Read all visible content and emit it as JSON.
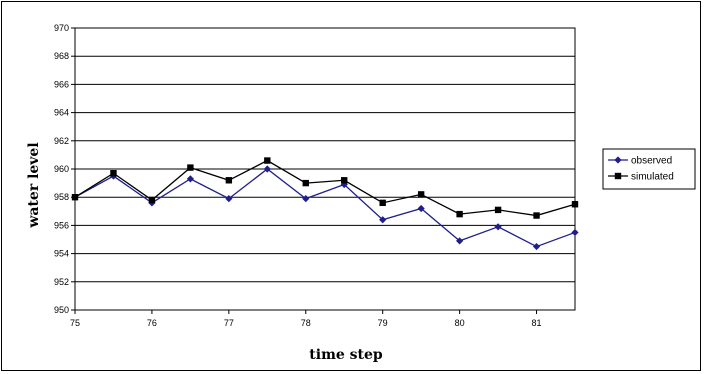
{
  "chart_data": {
    "type": "line",
    "xlabel": "time step",
    "ylabel": "water level",
    "x": [
      75,
      75.5,
      76,
      76.5,
      77,
      77.5,
      78,
      78.5,
      79,
      79.5,
      80,
      80.5,
      81,
      81.5
    ],
    "xlim": [
      75,
      81.5
    ],
    "ylim": [
      950,
      970
    ],
    "x_ticks": [
      "75",
      "76",
      "77",
      "78",
      "79",
      "80",
      "81"
    ],
    "y_ticks": [
      "950",
      "952",
      "954",
      "956",
      "958",
      "960",
      "962",
      "964",
      "966",
      "968",
      "970"
    ],
    "grid": "horizontal",
    "legend_position": "right",
    "series": [
      {
        "name": "observed",
        "color": "#1f1f8c",
        "marker": "diamond",
        "values": [
          958.0,
          959.5,
          957.6,
          959.3,
          957.9,
          960.0,
          957.9,
          958.9,
          956.4,
          957.2,
          954.9,
          955.9,
          954.5,
          955.5
        ]
      },
      {
        "name": "simulated",
        "color": "#000000",
        "marker": "square",
        "values": [
          958.0,
          959.7,
          957.8,
          960.1,
          959.2,
          960.6,
          959.0,
          959.2,
          957.6,
          958.2,
          956.8,
          957.1,
          956.7,
          957.5
        ]
      }
    ]
  }
}
